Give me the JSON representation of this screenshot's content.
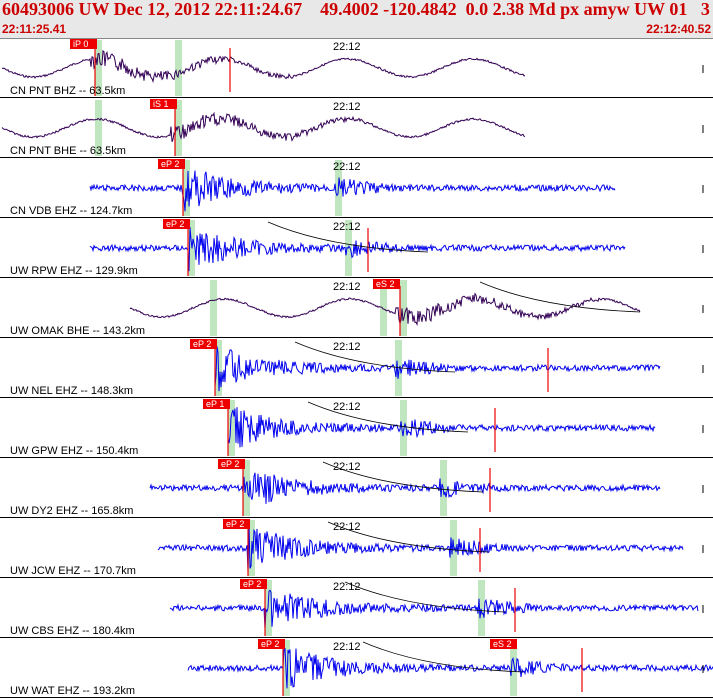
{
  "header": {
    "title": "60493006 UW Dec 12, 2012 22:11:24.67    49.4002 -120.4842  0.0 2.38 Md px amyw UW 01   3",
    "time_start": "22:11:25.41",
    "time_end": "22:12:40.52"
  },
  "minute_label": "22:12",
  "colors": {
    "header_bg": "#e8e8e8",
    "header_text": "#cc0000",
    "trace_short_period": "#0000ee",
    "trace_broadband": "#330055",
    "pick_flag": "#ee0000",
    "window_band": "#bfe6bf"
  },
  "traces": [
    {
      "label": "CN PNT BHZ -- 63.5km",
      "pick": "iP 0",
      "color": "broadband"
    },
    {
      "label": "CN PNT BHE -- 63.5km",
      "pick": "iS 1",
      "color": "broadband"
    },
    {
      "label": "CN VDB EHZ -- 124.7km",
      "pick": "eP 2",
      "color": "short"
    },
    {
      "label": "UW RPW EHZ -- 129.9km",
      "pick": "eP 2",
      "color": "short"
    },
    {
      "label": "UW OMAK BHE -- 143.2km",
      "pick": "eS 2",
      "color": "broadband"
    },
    {
      "label": "UW NEL EHZ -- 148.3km",
      "pick": "eP 2",
      "color": "short"
    },
    {
      "label": "UW GPW EHZ -- 150.4km",
      "pick": "eP 1",
      "color": "short"
    },
    {
      "label": "UW DY2 EHZ -- 165.8km",
      "pick": "eP 2",
      "color": "short"
    },
    {
      "label": "UW JCW EHZ -- 170.7km",
      "pick": "eP 2",
      "color": "short"
    },
    {
      "label": "UW CBS EHZ -- 180.4km",
      "pick": "eP 2",
      "color": "short"
    },
    {
      "label": "UW WAT EHZ -- 193.2km",
      "pick": "eP 2",
      "color": "short"
    }
  ],
  "extra_picks": [
    {
      "trace": 10,
      "label": "eS 2"
    }
  ]
}
